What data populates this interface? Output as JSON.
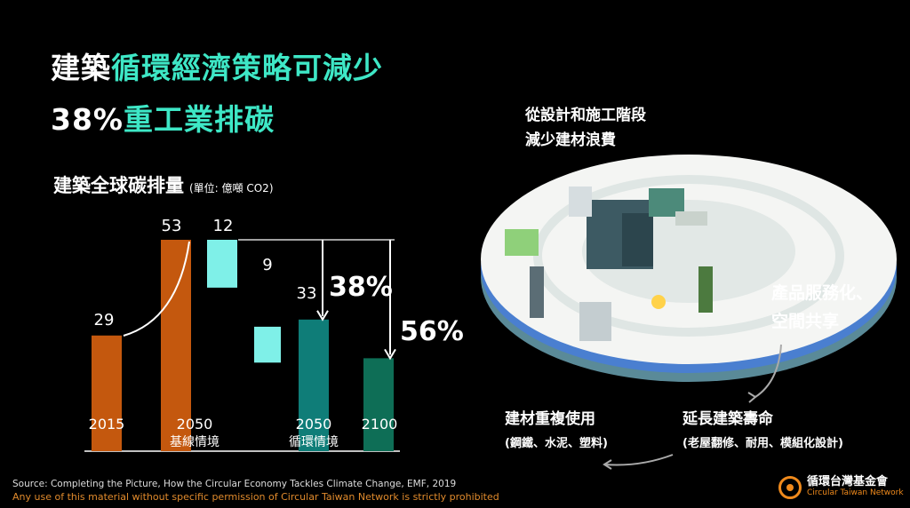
{
  "title": {
    "line1_plain": "建築",
    "line1_accent": "循環經濟策略可減少",
    "line2_plain": "38%",
    "line2_accent": "重工業排碳"
  },
  "chart_title": {
    "label": "建築全球碳排量",
    "unit": "(單位: 億噸 CO2)"
  },
  "chart_data": {
    "type": "bar",
    "title": "建築全球碳排量",
    "unit": "(單位: 億噸 CO2)",
    "categories": [
      "2015",
      "2050\n基線情境",
      "2050\n循環情境",
      "2100"
    ],
    "bars": [
      {
        "category": "2015",
        "value": 29,
        "color": "#c4580e"
      },
      {
        "category": "2050 基線情境",
        "value": 53,
        "color": "#c4580e"
      },
      {
        "category": "2050 循環情境",
        "value": 33,
        "color": "#0f7d78"
      },
      {
        "category": "2100",
        "value": 23.3,
        "color": "#0e6e56"
      }
    ],
    "reductions": [
      {
        "value": 12,
        "color": "#7ff0e8"
      },
      {
        "value": 9,
        "color": "#7ff0e8"
      }
    ],
    "value_labels": [
      "29",
      "53",
      "12",
      "9",
      "33"
    ],
    "percent_labels": [
      "38%",
      "56%"
    ],
    "ylim": [
      0,
      53
    ]
  },
  "captions": {
    "design_line1": "從設計和施工階段",
    "design_line2": "減少建材浪費",
    "service_line1": "產品服務化、",
    "service_line2": "空間共享",
    "extend_main": "延長建築壽命",
    "extend_sub": "(老屋翻修、耐用、模組化設計)",
    "reuse_main": "建材重複使用",
    "reuse_sub": "(鋼鐵、水泥、塑料)"
  },
  "footer": {
    "source": "Source: Completing the Picture, How the Circular Economy Tackles Climate Change, EMF, 2019",
    "warning": "Any use of this material without specific permission of Circular Taiwan Network is strictly prohibited",
    "logo_zh": "循環台灣基金會",
    "logo_en": "Circular Taiwan Network"
  },
  "colors": {
    "accent": "#3ee7c6",
    "orange": "#c4580e",
    "teal": "#0f7d78",
    "green": "#0e6e56",
    "cyan": "#7ff0e8"
  }
}
